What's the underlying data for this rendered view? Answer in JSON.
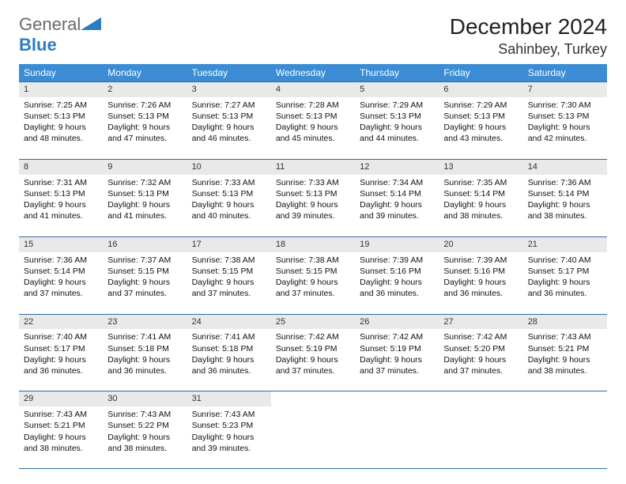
{
  "brand": {
    "word1": "General",
    "word2": "Blue"
  },
  "title": "December 2024",
  "location": "Sahinbey, Turkey",
  "colors": {
    "header_bg": "#3b8cd4",
    "header_text": "#ffffff",
    "row_divider": "#2e6ca8",
    "daynum_bg": "#e9e9ea",
    "brand_gray": "#6a6a6a",
    "brand_blue": "#2b7dc3",
    "page_bg": "#ffffff"
  },
  "weekdays": [
    "Sunday",
    "Monday",
    "Tuesday",
    "Wednesday",
    "Thursday",
    "Friday",
    "Saturday"
  ],
  "weeks": [
    [
      {
        "day": "1",
        "sunrise": "7:25 AM",
        "sunset": "5:13 PM",
        "daylight": "9 hours and 48 minutes."
      },
      {
        "day": "2",
        "sunrise": "7:26 AM",
        "sunset": "5:13 PM",
        "daylight": "9 hours and 47 minutes."
      },
      {
        "day": "3",
        "sunrise": "7:27 AM",
        "sunset": "5:13 PM",
        "daylight": "9 hours and 46 minutes."
      },
      {
        "day": "4",
        "sunrise": "7:28 AM",
        "sunset": "5:13 PM",
        "daylight": "9 hours and 45 minutes."
      },
      {
        "day": "5",
        "sunrise": "7:29 AM",
        "sunset": "5:13 PM",
        "daylight": "9 hours and 44 minutes."
      },
      {
        "day": "6",
        "sunrise": "7:29 AM",
        "sunset": "5:13 PM",
        "daylight": "9 hours and 43 minutes."
      },
      {
        "day": "7",
        "sunrise": "7:30 AM",
        "sunset": "5:13 PM",
        "daylight": "9 hours and 42 minutes."
      }
    ],
    [
      {
        "day": "8",
        "sunrise": "7:31 AM",
        "sunset": "5:13 PM",
        "daylight": "9 hours and 41 minutes."
      },
      {
        "day": "9",
        "sunrise": "7:32 AM",
        "sunset": "5:13 PM",
        "daylight": "9 hours and 41 minutes."
      },
      {
        "day": "10",
        "sunrise": "7:33 AM",
        "sunset": "5:13 PM",
        "daylight": "9 hours and 40 minutes."
      },
      {
        "day": "11",
        "sunrise": "7:33 AM",
        "sunset": "5:13 PM",
        "daylight": "9 hours and 39 minutes."
      },
      {
        "day": "12",
        "sunrise": "7:34 AM",
        "sunset": "5:14 PM",
        "daylight": "9 hours and 39 minutes."
      },
      {
        "day": "13",
        "sunrise": "7:35 AM",
        "sunset": "5:14 PM",
        "daylight": "9 hours and 38 minutes."
      },
      {
        "day": "14",
        "sunrise": "7:36 AM",
        "sunset": "5:14 PM",
        "daylight": "9 hours and 38 minutes."
      }
    ],
    [
      {
        "day": "15",
        "sunrise": "7:36 AM",
        "sunset": "5:14 PM",
        "daylight": "9 hours and 37 minutes."
      },
      {
        "day": "16",
        "sunrise": "7:37 AM",
        "sunset": "5:15 PM",
        "daylight": "9 hours and 37 minutes."
      },
      {
        "day": "17",
        "sunrise": "7:38 AM",
        "sunset": "5:15 PM",
        "daylight": "9 hours and 37 minutes."
      },
      {
        "day": "18",
        "sunrise": "7:38 AM",
        "sunset": "5:15 PM",
        "daylight": "9 hours and 37 minutes."
      },
      {
        "day": "19",
        "sunrise": "7:39 AM",
        "sunset": "5:16 PM",
        "daylight": "9 hours and 36 minutes."
      },
      {
        "day": "20",
        "sunrise": "7:39 AM",
        "sunset": "5:16 PM",
        "daylight": "9 hours and 36 minutes."
      },
      {
        "day": "21",
        "sunrise": "7:40 AM",
        "sunset": "5:17 PM",
        "daylight": "9 hours and 36 minutes."
      }
    ],
    [
      {
        "day": "22",
        "sunrise": "7:40 AM",
        "sunset": "5:17 PM",
        "daylight": "9 hours and 36 minutes."
      },
      {
        "day": "23",
        "sunrise": "7:41 AM",
        "sunset": "5:18 PM",
        "daylight": "9 hours and 36 minutes."
      },
      {
        "day": "24",
        "sunrise": "7:41 AM",
        "sunset": "5:18 PM",
        "daylight": "9 hours and 36 minutes."
      },
      {
        "day": "25",
        "sunrise": "7:42 AM",
        "sunset": "5:19 PM",
        "daylight": "9 hours and 37 minutes."
      },
      {
        "day": "26",
        "sunrise": "7:42 AM",
        "sunset": "5:19 PM",
        "daylight": "9 hours and 37 minutes."
      },
      {
        "day": "27",
        "sunrise": "7:42 AM",
        "sunset": "5:20 PM",
        "daylight": "9 hours and 37 minutes."
      },
      {
        "day": "28",
        "sunrise": "7:43 AM",
        "sunset": "5:21 PM",
        "daylight": "9 hours and 38 minutes."
      }
    ],
    [
      {
        "day": "29",
        "sunrise": "7:43 AM",
        "sunset": "5:21 PM",
        "daylight": "9 hours and 38 minutes."
      },
      {
        "day": "30",
        "sunrise": "7:43 AM",
        "sunset": "5:22 PM",
        "daylight": "9 hours and 38 minutes."
      },
      {
        "day": "31",
        "sunrise": "7:43 AM",
        "sunset": "5:23 PM",
        "daylight": "9 hours and 39 minutes."
      },
      null,
      null,
      null,
      null
    ]
  ],
  "labels": {
    "sunrise": "Sunrise: ",
    "sunset": "Sunset: ",
    "daylight": "Daylight: "
  }
}
